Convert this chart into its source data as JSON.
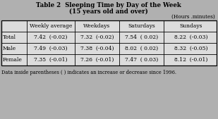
{
  "title_line1": "Table 2  Sleeping Time by Day of the Week",
  "title_line2": "(15 years old and over)",
  "units_label": "(Hours .minutes)",
  "col_headers": [
    "",
    "Weekly average",
    "Weekdays",
    "Saturdays",
    "Sundays"
  ],
  "rows": [
    [
      "Total",
      "7.42  (-0.02)",
      "7.32  (-0.02)",
      "7.54  ( 0.02)",
      "8.22  (-0.03)"
    ],
    [
      "Male",
      "7.49  (-0.03)",
      "7.38  (-0.04)",
      "8.02  ( 0.02)",
      "8.32  (-0.05)"
    ],
    [
      "Female",
      "7.35  (-0.01)",
      "7.26  (-0.01)",
      "7.47  ( 0.03)",
      "8.12  (-0.01)"
    ]
  ],
  "footnote": "Data inside parentheses ( ) indicates an increase or decrease since 1996.",
  "bg_color": "#b0b0b0",
  "table_bg": "#dcdcdc",
  "title_fontsize": 6.2,
  "header_fontsize": 5.5,
  "cell_fontsize": 5.5,
  "footnote_fontsize": 4.8,
  "units_fontsize": 5.2
}
